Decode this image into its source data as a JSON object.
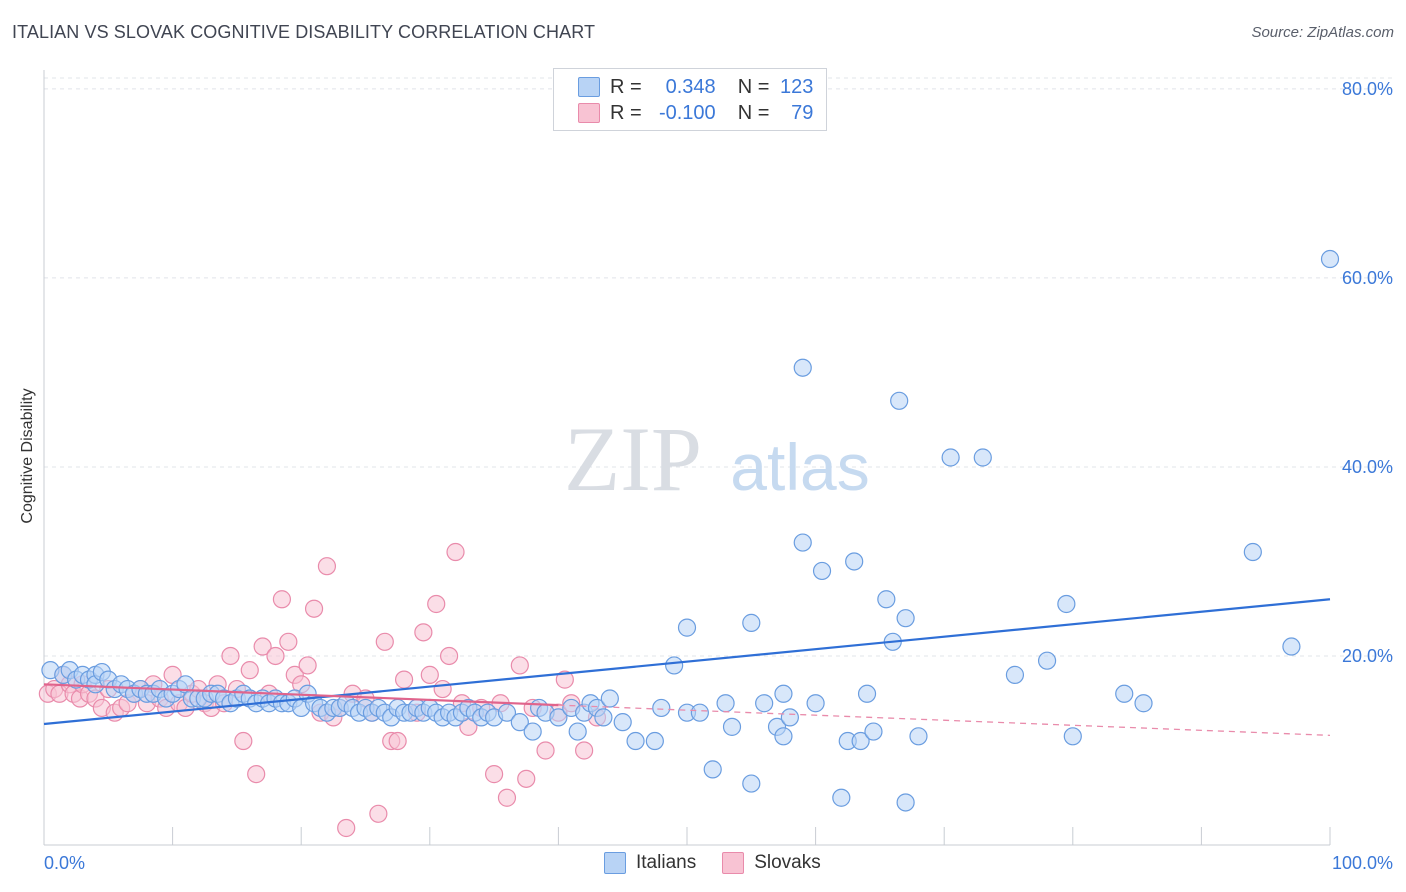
{
  "title": "ITALIAN VS SLOVAK COGNITIVE DISABILITY CORRELATION CHART",
  "source": "Source: ZipAtlas.com",
  "watermark": {
    "zip": "ZIP",
    "atlas": "atlas"
  },
  "legend": {
    "r_label": "R =",
    "n_label": "N =",
    "rows": [
      {
        "r": "0.348",
        "n": "123",
        "fill": "#b8d3f5",
        "stroke": "#6a9de0"
      },
      {
        "r": "-0.100",
        "n": "79",
        "fill": "#f8c3d3",
        "stroke": "#e98bab"
      }
    ]
  },
  "chart_data": {
    "type": "scatter",
    "title": "ITALIAN VS SLOVAK COGNITIVE DISABILITY CORRELATION CHART",
    "xlabel": "",
    "ylabel": "Cognitive Disability",
    "xlim": [
      0,
      100
    ],
    "ylim": [
      0,
      82
    ],
    "x_tick_labels": [
      "0.0%",
      "100.0%"
    ],
    "y_ticks": [
      20,
      40,
      60,
      80
    ],
    "y_tick_labels": [
      "20.0%",
      "40.0%",
      "60.0%",
      "80.0%"
    ],
    "grid": "horizontal dashed",
    "legend_position": "bottom-center",
    "series": [
      {
        "name": "Italians",
        "color": "#6a9de0",
        "fill": "#b8d3f5",
        "trend": {
          "x0": 0,
          "y0": 12.8,
          "x1": 100,
          "y1": 26.0
        },
        "points": [
          [
            0.5,
            18.5
          ],
          [
            1.5,
            18
          ],
          [
            2,
            18.5
          ],
          [
            2.5,
            17.5
          ],
          [
            3,
            18
          ],
          [
            3.5,
            17.5
          ],
          [
            4,
            18
          ],
          [
            4,
            17
          ],
          [
            4.5,
            18.3
          ],
          [
            5,
            17.5
          ],
          [
            5.5,
            16.5
          ],
          [
            6,
            17
          ],
          [
            6.5,
            16.5
          ],
          [
            7,
            16
          ],
          [
            7.5,
            16.5
          ],
          [
            8,
            16
          ],
          [
            8.5,
            16
          ],
          [
            9,
            16.5
          ],
          [
            9.5,
            15.5
          ],
          [
            10,
            16
          ],
          [
            10.5,
            16.5
          ],
          [
            11,
            17
          ],
          [
            11.5,
            15.5
          ],
          [
            12,
            15.5
          ],
          [
            12.5,
            15.5
          ],
          [
            13,
            16
          ],
          [
            13.5,
            16
          ],
          [
            14,
            15.5
          ],
          [
            14.5,
            15
          ],
          [
            15,
            15.5
          ],
          [
            15.5,
            16
          ],
          [
            16,
            15.5
          ],
          [
            16.5,
            15
          ],
          [
            17,
            15.5
          ],
          [
            17.5,
            15
          ],
          [
            18,
            15.5
          ],
          [
            18.5,
            15
          ],
          [
            19,
            15
          ],
          [
            19.5,
            15.5
          ],
          [
            20,
            14.5
          ],
          [
            20.5,
            16
          ],
          [
            21,
            15
          ],
          [
            21.5,
            14.5
          ],
          [
            22,
            14
          ],
          [
            22.5,
            14.5
          ],
          [
            23,
            14.5
          ],
          [
            23.5,
            15
          ],
          [
            24,
            14.5
          ],
          [
            24.5,
            14
          ],
          [
            25,
            14.5
          ],
          [
            25.5,
            14
          ],
          [
            26,
            14.5
          ],
          [
            26.5,
            14
          ],
          [
            27,
            13.5
          ],
          [
            27.5,
            14.5
          ],
          [
            28,
            14
          ],
          [
            28.5,
            14
          ],
          [
            29,
            14.5
          ],
          [
            29.5,
            14
          ],
          [
            30,
            14.5
          ],
          [
            30.5,
            14
          ],
          [
            31,
            13.5
          ],
          [
            31.5,
            14
          ],
          [
            32,
            13.5
          ],
          [
            32.5,
            14
          ],
          [
            33,
            14.5
          ],
          [
            33.5,
            14
          ],
          [
            34,
            13.5
          ],
          [
            34.5,
            14
          ],
          [
            35,
            13.5
          ],
          [
            36,
            14
          ],
          [
            37,
            13
          ],
          [
            38,
            12
          ],
          [
            38.5,
            14.5
          ],
          [
            39,
            14
          ],
          [
            40,
            13.5
          ],
          [
            41,
            14.5
          ],
          [
            41.5,
            12
          ],
          [
            42,
            14
          ],
          [
            42.5,
            15
          ],
          [
            43,
            14.5
          ],
          [
            43.5,
            13.5
          ],
          [
            44,
            15.5
          ],
          [
            45,
            13
          ],
          [
            46,
            11
          ],
          [
            47.5,
            11
          ],
          [
            48,
            14.5
          ],
          [
            49,
            19
          ],
          [
            50,
            23
          ],
          [
            50,
            14
          ],
          [
            51,
            14
          ],
          [
            52,
            8
          ],
          [
            53,
            15
          ],
          [
            53.5,
            12.5
          ],
          [
            55,
            6.5
          ],
          [
            55,
            23.5
          ],
          [
            56,
            15
          ],
          [
            57,
            12.5
          ],
          [
            57.5,
            16
          ],
          [
            57.5,
            11.5
          ],
          [
            58,
            13.5
          ],
          [
            59,
            50.5
          ],
          [
            59,
            32
          ],
          [
            60,
            15
          ],
          [
            60.5,
            29
          ],
          [
            62,
            5
          ],
          [
            62.5,
            11
          ],
          [
            63,
            30
          ],
          [
            63.5,
            11
          ],
          [
            64,
            16
          ],
          [
            64.5,
            12
          ],
          [
            65.5,
            26
          ],
          [
            66,
            21.5
          ],
          [
            66.5,
            47
          ],
          [
            67,
            24
          ],
          [
            68,
            11.5
          ],
          [
            70.5,
            41
          ],
          [
            73,
            41
          ],
          [
            75.5,
            18
          ],
          [
            78,
            19.5
          ],
          [
            79.5,
            25.5
          ],
          [
            80,
            11.5
          ],
          [
            84,
            16
          ],
          [
            85.5,
            15
          ],
          [
            94,
            31
          ],
          [
            97,
            21
          ],
          [
            100,
            62
          ],
          [
            67,
            4.5
          ]
        ]
      },
      {
        "name": "Slovaks",
        "color": "#e98bab",
        "fill": "#f8c3d3",
        "trend": {
          "x0": 0,
          "y0": 17.0,
          "x1": 40,
          "y1": 14.8,
          "x_dash_end": 100,
          "y_dash_end": 11.6
        },
        "points": [
          [
            0.3,
            16
          ],
          [
            0.8,
            16.5
          ],
          [
            1.2,
            16
          ],
          [
            1.5,
            18
          ],
          [
            2,
            17
          ],
          [
            2.3,
            16
          ],
          [
            2.8,
            15.5
          ],
          [
            3,
            17
          ],
          [
            3.5,
            16
          ],
          [
            4,
            15.5
          ],
          [
            4.5,
            14.5
          ],
          [
            5,
            16.5
          ],
          [
            5.5,
            14
          ],
          [
            6,
            14.5
          ],
          [
            6.5,
            15
          ],
          [
            7,
            16
          ],
          [
            7.5,
            16.5
          ],
          [
            8,
            15
          ],
          [
            8.5,
            17
          ],
          [
            9,
            15.5
          ],
          [
            9.5,
            14.5
          ],
          [
            10,
            18
          ],
          [
            10.5,
            15
          ],
          [
            11,
            14.5
          ],
          [
            11.5,
            16
          ],
          [
            12,
            16.5
          ],
          [
            12.5,
            15
          ],
          [
            13,
            14.5
          ],
          [
            13.5,
            17
          ],
          [
            14,
            15
          ],
          [
            14.5,
            20
          ],
          [
            15,
            16.5
          ],
          [
            15.5,
            11
          ],
          [
            16,
            18.5
          ],
          [
            16.5,
            7.5
          ],
          [
            17,
            21
          ],
          [
            17.5,
            16
          ],
          [
            18,
            20
          ],
          [
            18.5,
            26
          ],
          [
            19,
            21.5
          ],
          [
            19.5,
            18
          ],
          [
            20,
            17
          ],
          [
            20.5,
            19
          ],
          [
            21,
            25
          ],
          [
            21.5,
            14
          ],
          [
            22,
            29.5
          ],
          [
            22.5,
            13.5
          ],
          [
            23,
            14.5
          ],
          [
            23.5,
            1.8
          ],
          [
            24,
            16
          ],
          [
            25,
            15.5
          ],
          [
            25.5,
            14
          ],
          [
            26,
            3.3
          ],
          [
            26.5,
            21.5
          ],
          [
            27,
            11
          ],
          [
            27.5,
            11
          ],
          [
            28,
            17.5
          ],
          [
            29,
            14
          ],
          [
            29.5,
            22.5
          ],
          [
            30,
            18
          ],
          [
            30.5,
            25.5
          ],
          [
            31,
            16.5
          ],
          [
            31.5,
            20
          ],
          [
            32,
            31
          ],
          [
            32.5,
            15
          ],
          [
            33,
            12.5
          ],
          [
            34,
            14.5
          ],
          [
            35,
            7.5
          ],
          [
            35.5,
            15
          ],
          [
            36,
            5
          ],
          [
            37,
            19
          ],
          [
            37.5,
            7
          ],
          [
            38,
            14.5
          ],
          [
            39,
            10
          ],
          [
            40,
            14
          ],
          [
            40.5,
            17.5
          ],
          [
            41,
            15
          ],
          [
            42,
            10
          ],
          [
            43,
            13.5
          ]
        ]
      }
    ]
  }
}
